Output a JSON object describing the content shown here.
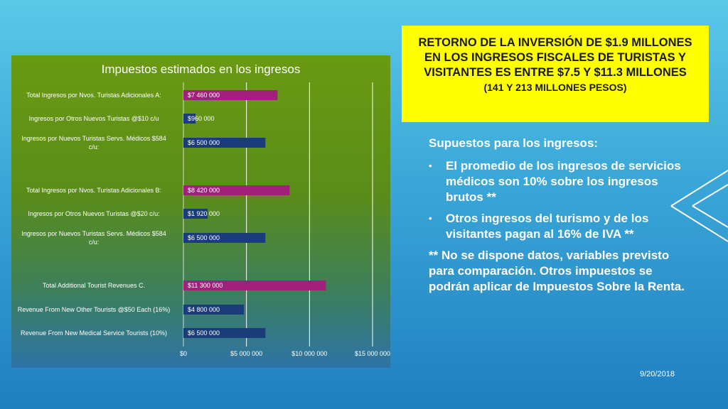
{
  "slide": {
    "title_main": "RETORNO DE LA INVERSIÓN DE $1.9 MILLONES EN LOS INGRESOS FISCALES DE TURISTAS Y VISITANTES ES ENTRE $7.5 Y $11.3 MILLONES",
    "title_sub": "(141 Y 213 MILLONES PESOS)",
    "heading": "Supuestos para los ingresos:",
    "bullets": [
      "El promedio de los ingresos de servicios médicos son 10% sobre los ingresos brutos **",
      "Otros ingresos del turismo y de los visitantes pagan al 16% de IVA **"
    ],
    "note": "** No se dispone datos, variables previsto para comparación. Otros impuestos se podrán aplicar de Impuestos Sobre la Renta.",
    "date": "9/20/2018"
  },
  "colors": {
    "highlight_bar": "#a0207a",
    "regular_bar": "#1a3c78",
    "title_box": "#ffff00"
  },
  "chart_data": {
    "type": "bar",
    "orientation": "horizontal",
    "title": "Impuestos estimados en los ingresos",
    "categories": [
      "Total Ingresos por Nvos. Turistas Adicionales A:",
      "Ingresos por Otros Nuevos Turistas @$10 c/u",
      "Ingresos por Nuevos Turistas Servs. Médicos $584 c/u:",
      "Total Ingresos por Nvos. Turistas Adicionales B:",
      "Ingresos por Otros Nuevos Turistas @$20 c/u:",
      "Ingresos por Nuevos Turistas Servs. Médicos $584 c/u:",
      "Total Additional Tourist Revenues C.",
      "Revenue From New Other Tourists @$50 Each (16%)",
      "Revenue From New Medical Service Tourists (10%)"
    ],
    "values": [
      7460000,
      960000,
      6500000,
      8420000,
      1920000,
      6500000,
      11300000,
      4800000,
      6500000
    ],
    "data_labels": [
      "$7 460 000",
      "$960 000",
      "$6 500 000",
      "$8 420 000",
      "$1 920 000",
      "$6 500 000",
      "$11 300 000",
      "$4 800 000",
      "$6 500 000"
    ],
    "highlight": [
      true,
      false,
      false,
      true,
      false,
      false,
      true,
      false,
      false
    ],
    "group_gaps_after": [
      2,
      5
    ],
    "xlim": [
      0,
      15000000
    ],
    "xticks": [
      0,
      5000000,
      10000000,
      15000000
    ],
    "xtick_labels": [
      "$0",
      "$5 000 000",
      "$10 000 000",
      "$15 000 000"
    ],
    "grid": true,
    "legend": "none"
  }
}
